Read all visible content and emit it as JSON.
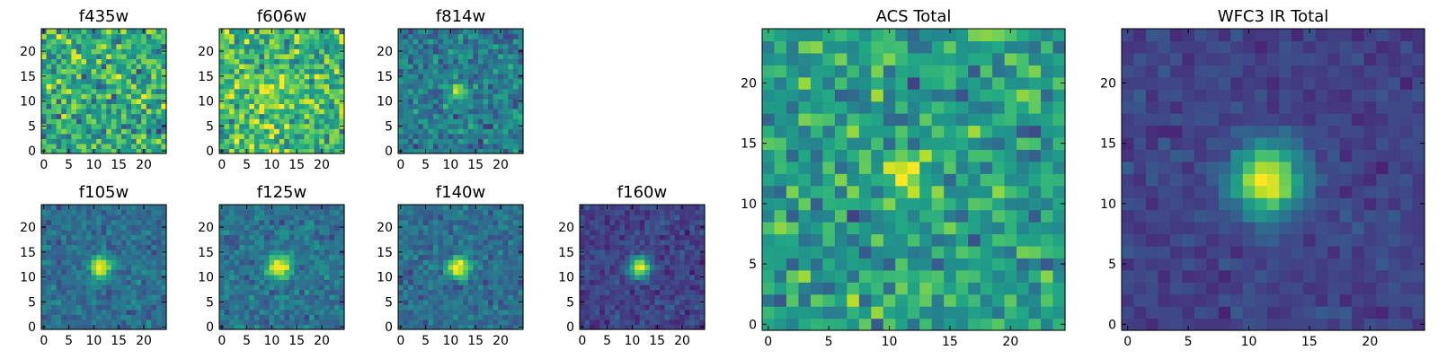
{
  "colormap": "viridis",
  "chart_data": [
    {
      "type": "heatmap",
      "title": "f435w",
      "grid_size": 25,
      "xticks": [
        0,
        5,
        10,
        15,
        20
      ],
      "yticks": [
        0,
        5,
        10,
        15,
        20
      ],
      "xlim": [
        0,
        24
      ],
      "ylim": [
        0,
        24
      ],
      "background_level": 0.62,
      "background_noise": 0.2,
      "source_center": [
        11.5,
        11.5
      ],
      "source_peak": 0.0,
      "source_sigma": 1.8,
      "seed": 11
    },
    {
      "type": "heatmap",
      "title": "f606w",
      "grid_size": 25,
      "xticks": [
        0,
        5,
        10,
        15,
        20
      ],
      "yticks": [
        0,
        5,
        10,
        15,
        20
      ],
      "xlim": [
        0,
        24
      ],
      "ylim": [
        0,
        24
      ],
      "background_level": 0.68,
      "background_noise": 0.2,
      "source_center": [
        9.5,
        12.0
      ],
      "source_peak": 0.18,
      "source_sigma": 2.5,
      "seed": 23
    },
    {
      "type": "heatmap",
      "title": "f814w",
      "grid_size": 25,
      "xticks": [
        0,
        5,
        10,
        15,
        20
      ],
      "yticks": [
        0,
        5,
        10,
        15,
        20
      ],
      "xlim": [
        0,
        24
      ],
      "ylim": [
        0,
        24
      ],
      "background_level": 0.42,
      "background_noise": 0.13,
      "source_center": [
        11.5,
        12.0
      ],
      "source_peak": 0.55,
      "source_sigma": 1.1,
      "seed": 37
    },
    {
      "type": "heatmap",
      "title": "f105w",
      "grid_size": 25,
      "xticks": [
        0,
        5,
        10,
        15,
        20
      ],
      "yticks": [
        0,
        5,
        10,
        15,
        20
      ],
      "xlim": [
        0,
        24
      ],
      "ylim": [
        0,
        24
      ],
      "background_level": 0.36,
      "background_noise": 0.09,
      "source_center": [
        11.5,
        12.0
      ],
      "source_peak": 0.72,
      "source_sigma": 1.5,
      "seed": 41
    },
    {
      "type": "heatmap",
      "title": "f125w",
      "grid_size": 25,
      "xticks": [
        0,
        5,
        10,
        15,
        20
      ],
      "yticks": [
        0,
        5,
        10,
        15,
        20
      ],
      "xlim": [
        0,
        24
      ],
      "ylim": [
        0,
        24
      ],
      "background_level": 0.38,
      "background_noise": 0.09,
      "source_center": [
        11.5,
        12.0
      ],
      "source_peak": 0.7,
      "source_sigma": 1.6,
      "seed": 53
    },
    {
      "type": "heatmap",
      "title": "f140w",
      "grid_size": 25,
      "xticks": [
        0,
        5,
        10,
        15,
        20
      ],
      "yticks": [
        0,
        5,
        10,
        15,
        20
      ],
      "xlim": [
        0,
        24
      ],
      "ylim": [
        0,
        24
      ],
      "background_level": 0.36,
      "background_noise": 0.09,
      "source_center": [
        11.5,
        12.0
      ],
      "source_peak": 0.72,
      "source_sigma": 1.5,
      "seed": 67
    },
    {
      "type": "heatmap",
      "title": "f160w",
      "grid_size": 25,
      "xticks": [
        0,
        5,
        10,
        15,
        20
      ],
      "yticks": [
        0,
        5,
        10,
        15,
        20
      ],
      "xlim": [
        0,
        24
      ],
      "ylim": [
        0,
        24
      ],
      "background_level": 0.2,
      "background_noise": 0.07,
      "source_center": [
        11.5,
        12.0
      ],
      "source_peak": 0.85,
      "source_sigma": 1.4,
      "seed": 79
    },
    {
      "type": "heatmap",
      "title": "ACS Total",
      "grid_size": 25,
      "xticks": [
        0,
        5,
        10,
        15,
        20
      ],
      "yticks": [
        0,
        5,
        10,
        15,
        20
      ],
      "xlim": [
        0,
        24
      ],
      "ylim": [
        0,
        24
      ],
      "background_level": 0.56,
      "background_noise": 0.16,
      "source_center": [
        11.5,
        12.0
      ],
      "source_peak": 0.48,
      "source_sigma": 1.1,
      "seed": 97
    },
    {
      "type": "heatmap",
      "title": "WFC3 IR Total",
      "grid_size": 25,
      "xticks": [
        0,
        5,
        10,
        15,
        20
      ],
      "yticks": [
        0,
        5,
        10,
        15,
        20
      ],
      "xlim": [
        0,
        24
      ],
      "ylim": [
        0,
        24
      ],
      "background_level": 0.2,
      "background_noise": 0.05,
      "source_center": [
        11.5,
        12.0
      ],
      "source_peak": 0.82,
      "source_sigma": 2.0,
      "seed": 131
    }
  ]
}
